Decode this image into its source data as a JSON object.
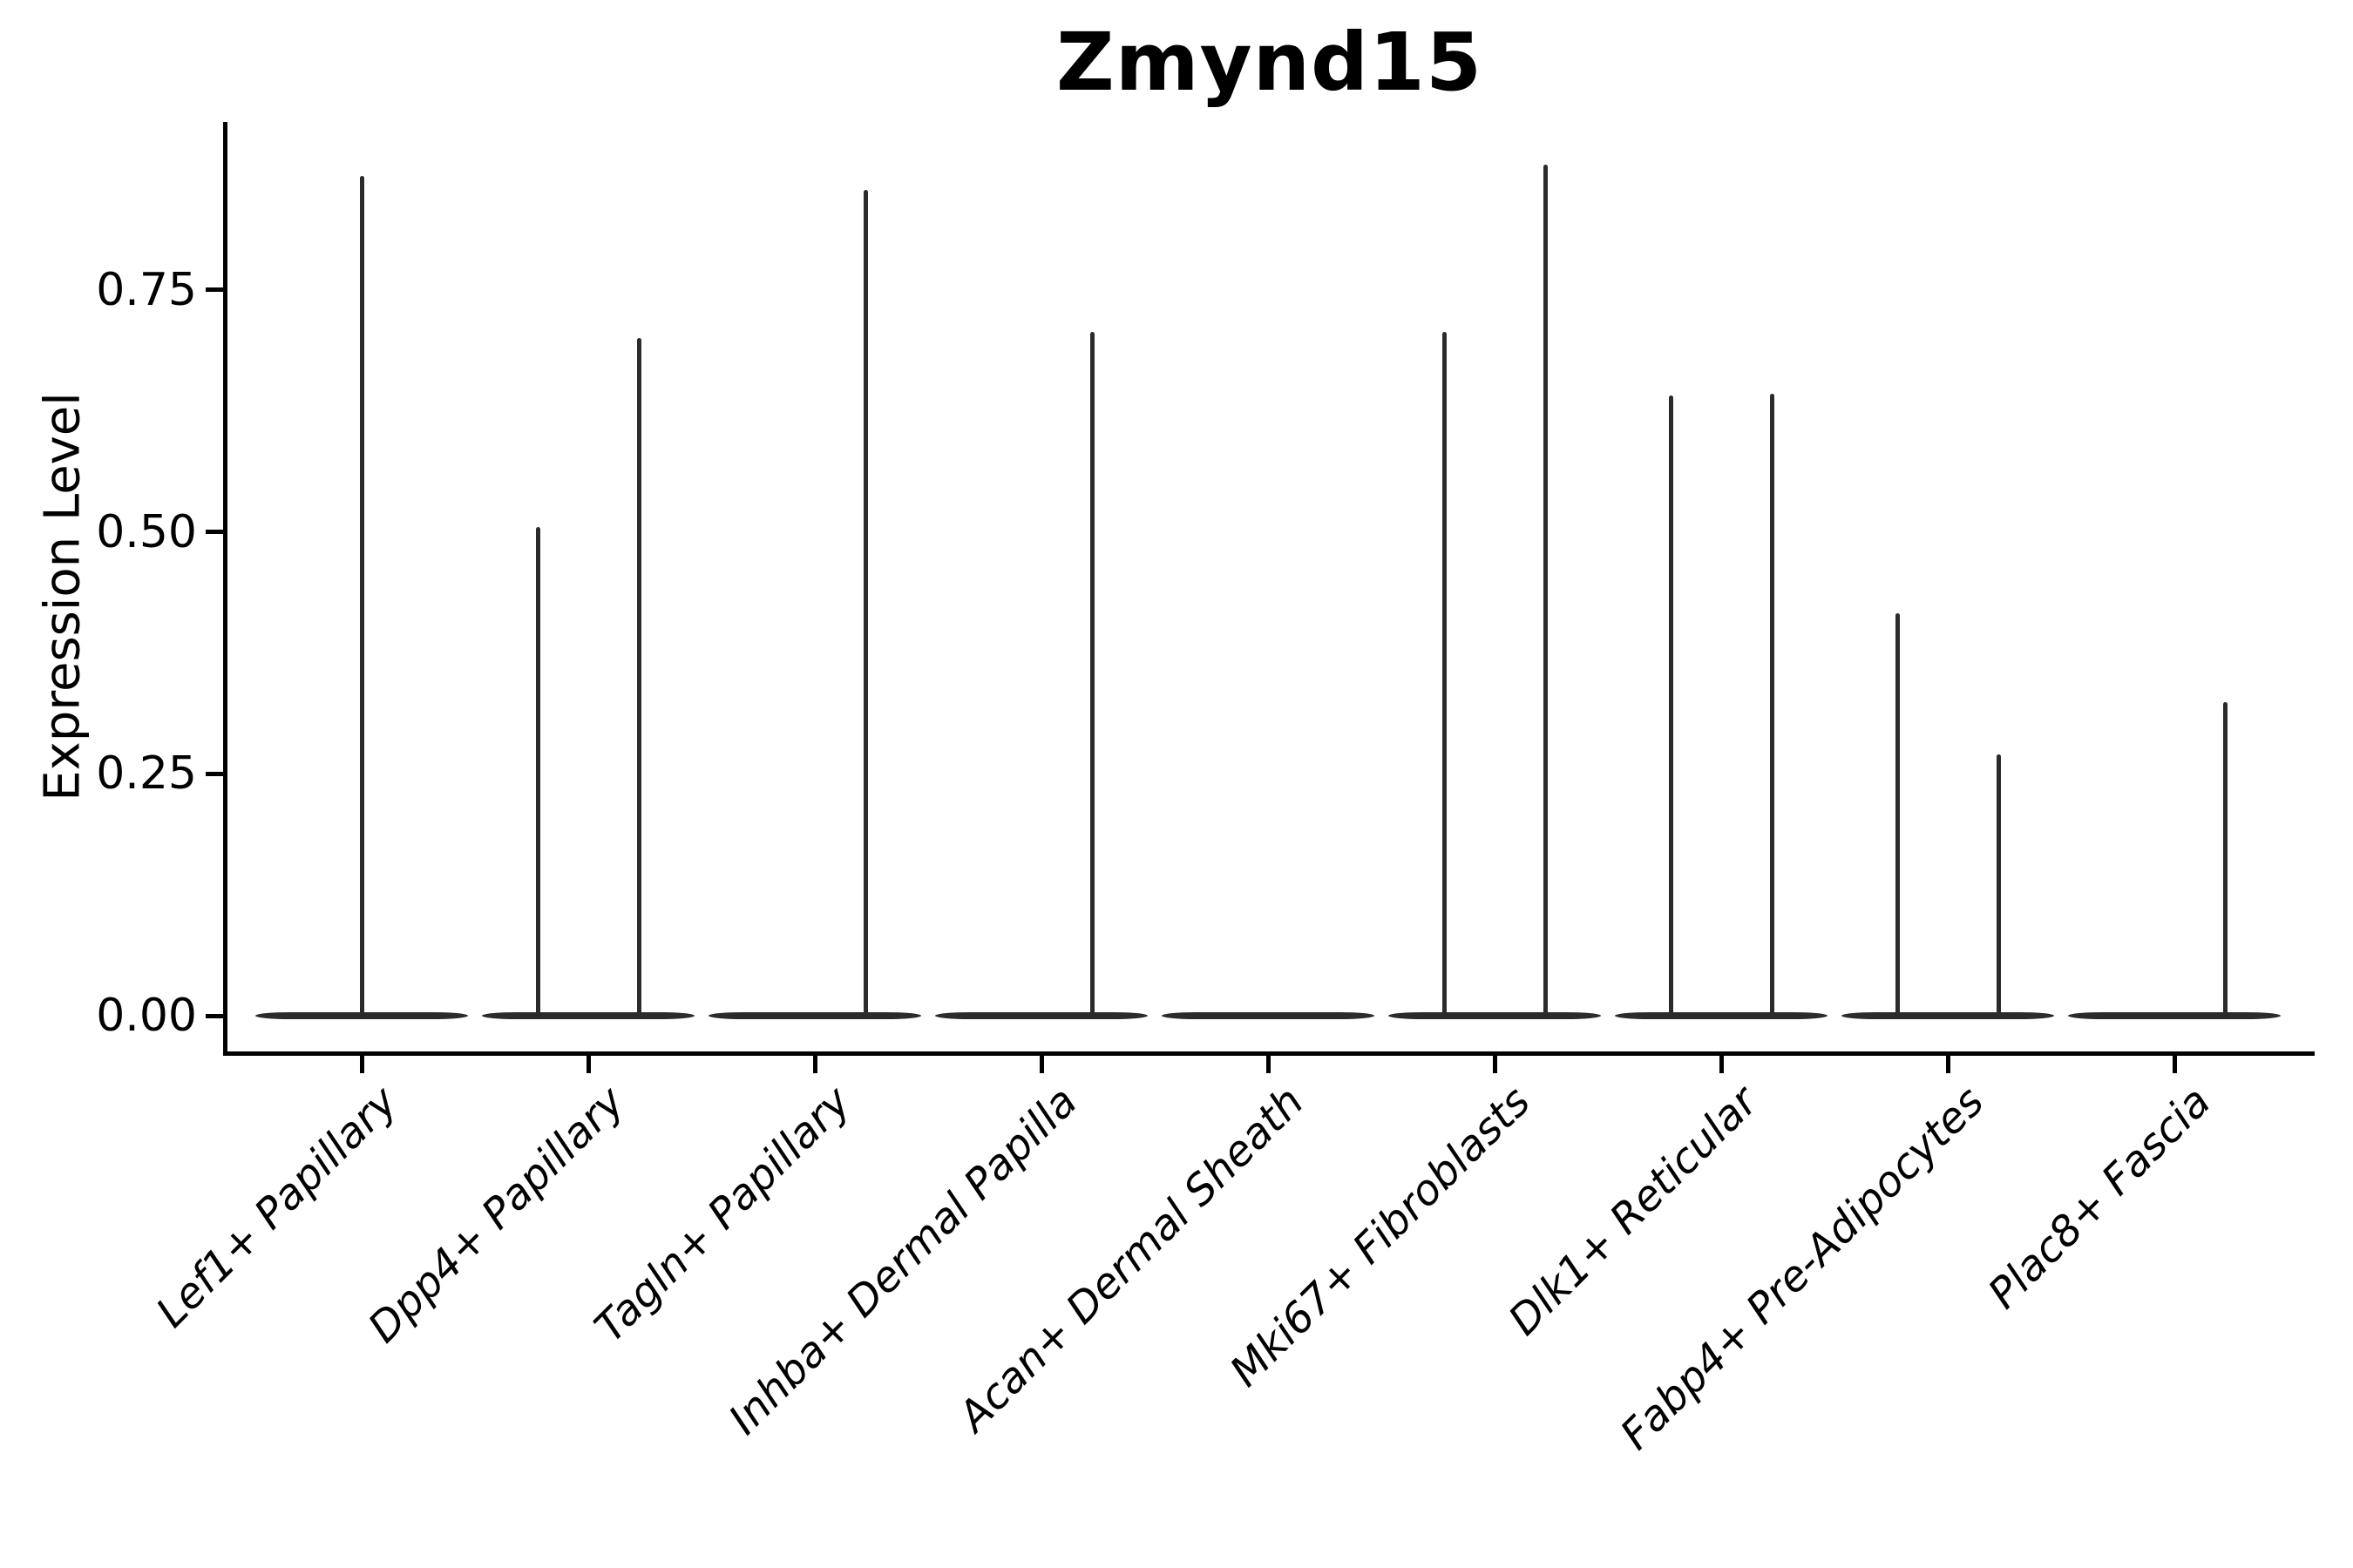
{
  "header": {
    "title": "Zmynd15"
  },
  "axes": {
    "y_label": "Expression Level",
    "y_tick_labels": [
      "0.00",
      "0.25",
      "0.50",
      "0.75"
    ]
  },
  "chart_data": {
    "type": "violin",
    "title": "Zmynd15",
    "xlabel": "",
    "ylabel": "Expression Level",
    "ylim": [
      0,
      0.92
    ],
    "yticks": [
      0.0,
      0.25,
      0.5,
      0.75
    ],
    "ytick_labels": [
      "0.00",
      "0.25",
      "0.50",
      "0.75"
    ],
    "grid": false,
    "legend": "none",
    "violin_color": "#2b2b2b",
    "categories": [
      "Lef1+ Papillary",
      "Dpp4+ Papillary",
      "Tagln+ Papillary",
      "Inhba+ Dermal Papilla",
      "Acan+ Dermal Sheath",
      "Mki67+ Fibroblasts",
      "Dlk1+ Reticular",
      "Fabp4+ Pre-Adipocytes",
      "Plac8+ Fascia"
    ],
    "groups": [
      {
        "label": "Lef1+ Papillary",
        "violins": [
          {
            "position": "center",
            "max": 0.868
          }
        ]
      },
      {
        "label": "Dpp4+ Papillary",
        "violins": [
          {
            "position": "left",
            "max": 0.505
          },
          {
            "position": "right",
            "max": 0.7
          }
        ]
      },
      {
        "label": "Tagln+ Papillary",
        "violins": [
          {
            "position": "right",
            "max": 0.853
          }
        ]
      },
      {
        "label": "Inhba+ Dermal Papilla",
        "violins": [
          {
            "position": "right",
            "max": 0.707
          }
        ]
      },
      {
        "label": "Acan+ Dermal Sheath",
        "violins": []
      },
      {
        "label": "Mki67+ Fibroblasts",
        "violins": [
          {
            "position": "left",
            "max": 0.707
          },
          {
            "position": "right",
            "max": 0.879
          }
        ]
      },
      {
        "label": "Dlk1+ Reticular",
        "violins": [
          {
            "position": "left",
            "max": 0.641
          },
          {
            "position": "right",
            "max": 0.643
          }
        ]
      },
      {
        "label": "Fabp4+ Pre-Adipocytes",
        "violins": [
          {
            "position": "left",
            "max": 0.416
          },
          {
            "position": "right",
            "max": 0.27
          }
        ]
      },
      {
        "label": "Plac8+ Fascia",
        "violins": [
          {
            "position": "right",
            "max": 0.324
          }
        ]
      }
    ],
    "description": "Violin plot; all distributions collapsed at 0 with thin density spikes up to the max expression value per violin."
  }
}
